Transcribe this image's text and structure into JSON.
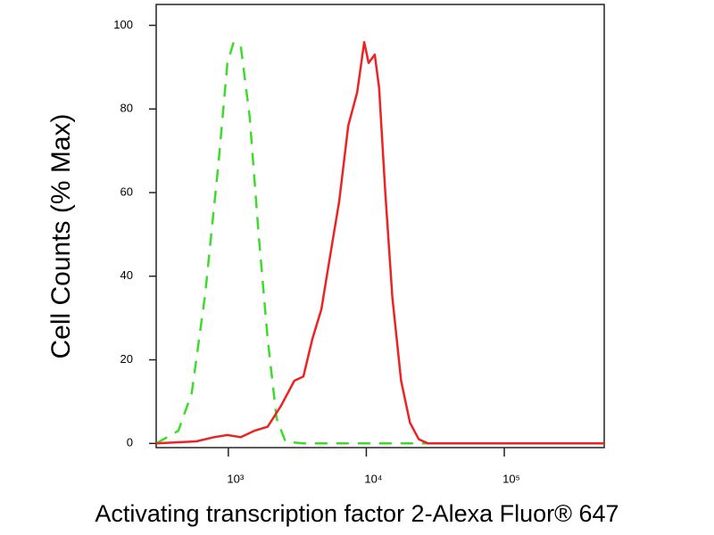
{
  "chart_data": {
    "type": "line",
    "xlabel": "Activating transcription factor 2-Alexa Fluor® 647",
    "ylabel": "Cell Counts (% Max)",
    "xscale": "log",
    "xlim": [
      300,
      530000
    ],
    "ylim": [
      -1,
      105
    ],
    "xticks": [
      {
        "value": 1000,
        "label": "10³"
      },
      {
        "value": 10000,
        "label": "10⁴"
      },
      {
        "value": 100000,
        "label": "10⁵"
      }
    ],
    "yticks": [
      0,
      20,
      40,
      60,
      80,
      100
    ],
    "grid": false,
    "series": [
      {
        "color": "#3ddc2a",
        "dash": true,
        "x": [
          300,
          434,
          543,
          679,
          849,
          985,
          1093,
          1232,
          1430,
          1659,
          1927,
          2236,
          2595,
          3497,
          8550,
          530000
        ],
        "values": [
          0,
          3,
          12,
          35.5,
          67,
          91,
          96,
          95,
          78,
          50,
          25,
          6,
          0.4,
          0,
          0,
          0
        ]
      },
      {
        "color": "#ee2222",
        "dash": false,
        "x": [
          300,
          585,
          788,
          985,
          1232,
          1540,
          1927,
          2409,
          3011,
          3497,
          4063,
          4718,
          5480,
          6366,
          7394,
          8590,
          9655,
          10390,
          11510,
          12390,
          13730,
          15440,
          17880,
          20720,
          24000,
          27980,
          530000
        ],
        "values": [
          0,
          0.5,
          1.5,
          2,
          1.5,
          3,
          4,
          9,
          15,
          16,
          25,
          32,
          45,
          58,
          76,
          84,
          96,
          91,
          93,
          85,
          60,
          35,
          15,
          5,
          1,
          0,
          0
        ]
      }
    ]
  }
}
